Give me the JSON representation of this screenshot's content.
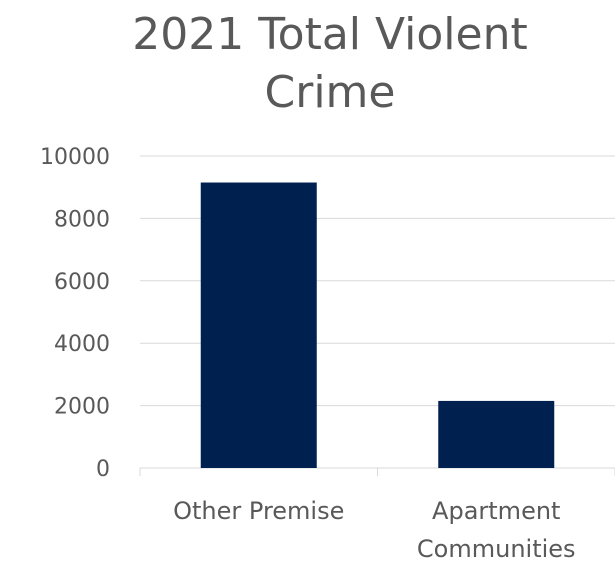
{
  "chart_data": {
    "type": "bar",
    "title_line1": "2021 Total Violent",
    "title_line2": "Crime",
    "categories": [
      "Other Premise",
      "Apartment Communities"
    ],
    "category_lines": [
      [
        "Other Premise"
      ],
      [
        "Apartment",
        "Communities"
      ]
    ],
    "values": [
      9150,
      2150
    ],
    "ylim": [
      0,
      10000
    ],
    "yticks": [
      "0",
      "2000",
      "4000",
      "6000",
      "8000",
      "10000"
    ],
    "bar_color": "#002050",
    "grid": true
  }
}
